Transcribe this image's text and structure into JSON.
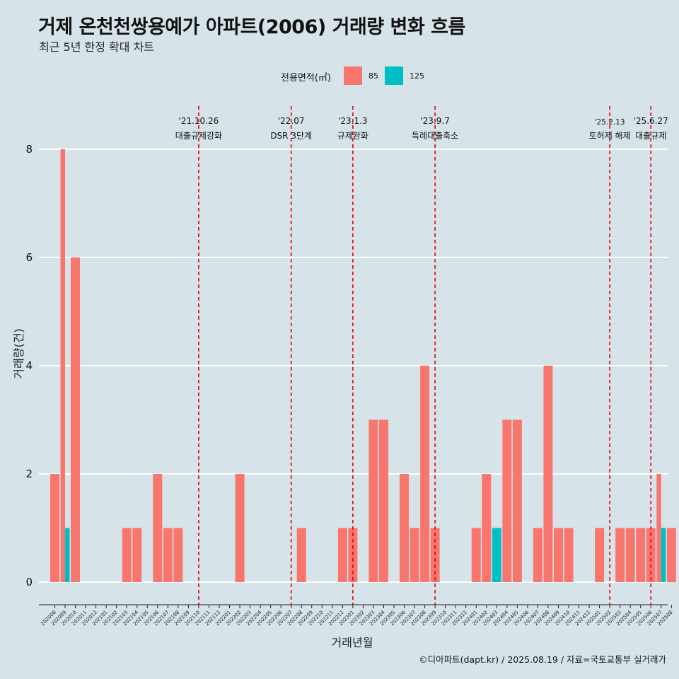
{
  "title": "거제 온천천쌍용예가 아파트(2006) 거래량 변화 흐름",
  "subtitle": "최근 5년 한정 확대 차트",
  "caption": "©디아파트(dapt.kr) / 2025.08.19 / 자료=국토교통부 실거래가",
  "legend": {
    "title": "전용면적(㎡)",
    "items": [
      {
        "label": "85",
        "color": "#f8766d"
      },
      {
        "label": "125",
        "color": "#00bfc4"
      }
    ]
  },
  "chart_data": {
    "type": "bar",
    "xlabel": "거래년월",
    "ylabel": "거래량(건)",
    "ylim": [
      0,
      8
    ],
    "yticks": [
      0,
      2,
      4,
      6,
      8
    ],
    "grid": true,
    "categories": [
      "202008",
      "202009",
      "202010",
      "202011",
      "202012",
      "202101",
      "202102",
      "202103",
      "202104",
      "202105",
      "202106",
      "202107",
      "202108",
      "202109",
      "202110",
      "202111",
      "202112",
      "202201",
      "202202",
      "202203",
      "202204",
      "202205",
      "202206",
      "202207",
      "202208",
      "202209",
      "202210",
      "202211",
      "202212",
      "202301",
      "202302",
      "202303",
      "202304",
      "202305",
      "202306",
      "202307",
      "202308",
      "202309",
      "202310",
      "202311",
      "202312",
      "202401",
      "202402",
      "202403",
      "202404",
      "202405",
      "202406",
      "202407",
      "202408",
      "202409",
      "202410",
      "202411",
      "202412",
      "202501",
      "202502",
      "202503",
      "202504",
      "202505",
      "202506",
      "202507",
      "202508"
    ],
    "series": [
      {
        "name": "85",
        "color": "#f8766d",
        "values": [
          2,
          8,
          6,
          0,
          0,
          0,
          0,
          1,
          1,
          0,
          2,
          1,
          1,
          0,
          0,
          0,
          0,
          0,
          2,
          0,
          0,
          0,
          0,
          0,
          1,
          0,
          0,
          0,
          1,
          1,
          0,
          3,
          3,
          0,
          2,
          1,
          4,
          1,
          0,
          0,
          0,
          1,
          2,
          0,
          3,
          3,
          0,
          1,
          4,
          1,
          1,
          0,
          0,
          1,
          0,
          1,
          1,
          1,
          1,
          2,
          1
        ]
      },
      {
        "name": "125",
        "color": "#00bfc4",
        "values": [
          0,
          1,
          0,
          0,
          0,
          0,
          0,
          0,
          0,
          0,
          0,
          0,
          0,
          0,
          0,
          0,
          0,
          0,
          0,
          0,
          0,
          0,
          0,
          0,
          0,
          0,
          0,
          0,
          0,
          0,
          0,
          0,
          0,
          0,
          0,
          0,
          0,
          0,
          0,
          0,
          0,
          0,
          0,
          1,
          0,
          0,
          0,
          0,
          0,
          0,
          0,
          0,
          0,
          0,
          0,
          0,
          0,
          0,
          0,
          1,
          0
        ]
      }
    ],
    "events": [
      {
        "date": "'21.10.26",
        "label": "대출규제강화",
        "at": "202110"
      },
      {
        "date": "'22.07",
        "label": "DSR 3단계",
        "at": "202207"
      },
      {
        "date": "'23.1.3",
        "label": "규제완화",
        "at": "202301"
      },
      {
        "date": "'23.9.7",
        "label": "특례대출축소",
        "at": "202309"
      },
      {
        "date": "'25.2.13",
        "label": "토허제 해제",
        "at": "202502"
      },
      {
        "date": "'25.6.27",
        "label": "대출규제",
        "at": "202506"
      }
    ]
  }
}
